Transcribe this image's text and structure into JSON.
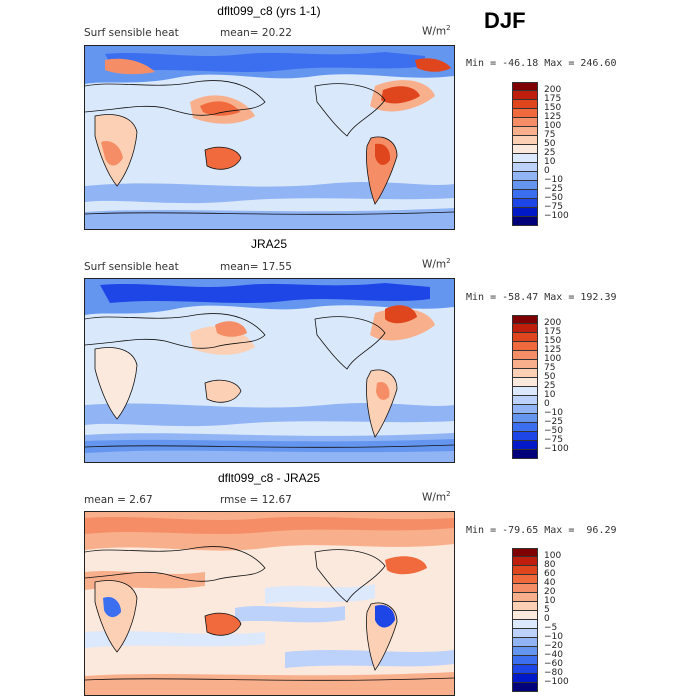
{
  "season": "DJF",
  "colors": {
    "scale": [
      "#00007a",
      "#0019c8",
      "#1e46e6",
      "#3c6ef0",
      "#6496f0",
      "#91b4f5",
      "#bcd2fa",
      "#dce8fc",
      "#fbe9dd",
      "#fbd0b5",
      "#f8af8c",
      "#f58e66",
      "#f06a3e",
      "#e0461e",
      "#c01e0c",
      "#7e0000"
    ],
    "ocean_base": "#d9e8fb",
    "land_base": "#fbe8da"
  },
  "panels": [
    {
      "title": "dflt099_c8 (yrs 1-1)",
      "left_label": "Surf sensible heat",
      "mean_label": "mean=  20.22",
      "units": "W/m",
      "units_sup": "2",
      "minmax": "Min = -46.18 Max = 246.60",
      "colorbar_labels": [
        "200",
        "175",
        "150",
        "125",
        "100",
        "75",
        "50",
        "25",
        "10",
        "0",
        "−10",
        "−25",
        "−50",
        "−75",
        "−100"
      ]
    },
    {
      "title": "JRA25",
      "left_label": "Surf sensible heat",
      "mean_label": "mean=  17.55",
      "units": "W/m",
      "units_sup": "2",
      "minmax": "Min = -58.47 Max = 192.39",
      "colorbar_labels": [
        "200",
        "175",
        "150",
        "125",
        "100",
        "75",
        "50",
        "25",
        "10",
        "0",
        "−10",
        "−25",
        "−50",
        "−75",
        "−100"
      ]
    },
    {
      "title": "dflt099_c8 - JRA25",
      "left_label": "mean =   2.67",
      "mean_label": "rmse =  12.67",
      "units": "W/m",
      "units_sup": "2",
      "minmax": "Min = -79.65 Max =  96.29",
      "colorbar_labels": [
        "100",
        "80",
        "60",
        "40",
        "20",
        "10",
        "5",
        "0",
        "−5",
        "−10",
        "−20",
        "−40",
        "−60",
        "−80",
        "−100"
      ]
    }
  ]
}
